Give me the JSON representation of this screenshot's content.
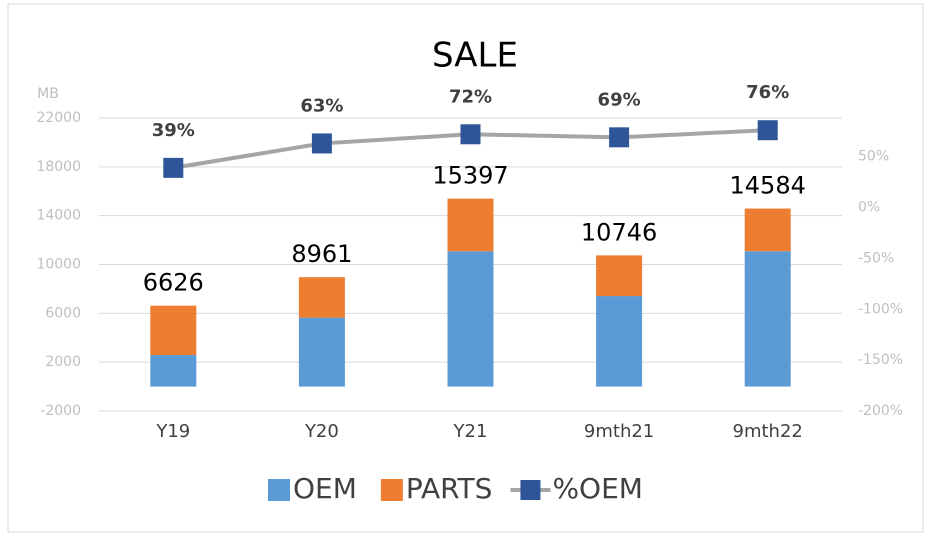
{
  "chart_data": {
    "type": "bar",
    "stacked": true,
    "title": "SALE",
    "y_label": "MB",
    "categories": [
      "Y19",
      "Y20",
      "Y21",
      "9mth21",
      "9mth22"
    ],
    "series": [
      {
        "name": "OEM",
        "color": "#5b9bd5",
        "values": [
          2584,
          5645,
          11086,
          7415,
          11084
        ]
      },
      {
        "name": "PARTS",
        "color": "#ed7d31",
        "values": [
          4042,
          3316,
          4311,
          3331,
          3500
        ]
      },
      {
        "name": "%OEM",
        "type": "line",
        "axis": "y2",
        "color": "#a5a5a5",
        "marker_color": "#2e5597",
        "values": [
          39,
          63,
          72,
          69,
          76
        ],
        "value_labels": [
          "39%",
          "63%",
          "72%",
          "69%",
          "76%"
        ]
      }
    ],
    "totals": [
      6626,
      8961,
      15397,
      10746,
      14584
    ],
    "ylim": [
      -2000,
      22000
    ],
    "yticks": [
      -2000,
      2000,
      6000,
      10000,
      14000,
      18000,
      22000
    ],
    "y2lim": [
      -200,
      88
    ],
    "y2ticks": [
      {
        "value": -200,
        "label": "-200%"
      },
      {
        "value": -150,
        "label": "-150%"
      },
      {
        "value": -100,
        "label": "-100%"
      },
      {
        "value": -50,
        "label": "-50%"
      },
      {
        "value": 0,
        "label": "0%"
      },
      {
        "value": 50,
        "label": "50%"
      }
    ],
    "grid": true,
    "legend": "bottom"
  }
}
